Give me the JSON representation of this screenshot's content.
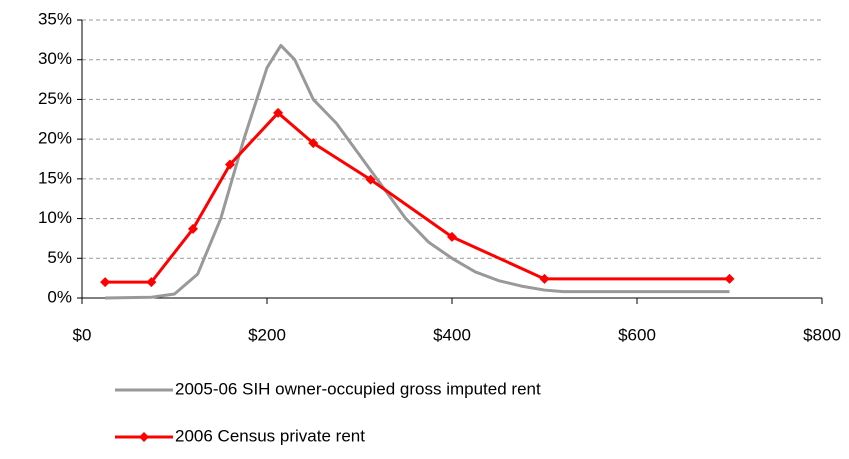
{
  "chart_data": {
    "type": "line",
    "xlim": [
      0,
      800
    ],
    "xticks": [
      {
        "value": 0,
        "label": "$0"
      },
      {
        "value": 200,
        "label": "$200"
      },
      {
        "value": 400,
        "label": "$400"
      },
      {
        "value": 600,
        "label": "$600"
      },
      {
        "value": 800,
        "label": "$800"
      }
    ],
    "ylim": [
      0,
      35
    ],
    "yticks": [
      {
        "value": 0,
        "label": "0%"
      },
      {
        "value": 5,
        "label": "5%"
      },
      {
        "value": 10,
        "label": "10%"
      },
      {
        "value": 15,
        "label": "15%"
      },
      {
        "value": 20,
        "label": "20%"
      },
      {
        "value": 25,
        "label": "25%"
      },
      {
        "value": 30,
        "label": "30%"
      },
      {
        "value": 35,
        "label": "35%"
      }
    ],
    "grid": true,
    "legend": "bottom",
    "series": [
      {
        "name": "2005-06 SIH owner-occupied gross imputed rent",
        "color": "#999999",
        "marker": "none",
        "x": [
          25,
          75,
          100,
          125,
          150,
          175,
          200,
          215,
          230,
          250,
          275,
          300,
          325,
          350,
          375,
          400,
          425,
          450,
          475,
          500,
          520,
          600,
          700
        ],
        "values": [
          0,
          0.1,
          0.5,
          3,
          10,
          20,
          29,
          31.8,
          30,
          25,
          22,
          18,
          14,
          10,
          7,
          5,
          3.3,
          2.2,
          1.5,
          1,
          0.8,
          0.8,
          0.8
        ]
      },
      {
        "name": "2006 Census private rent",
        "color": "#ff0000",
        "marker": "diamond",
        "x": [
          25,
          75,
          120,
          160,
          212,
          250,
          312,
          400,
          500,
          700
        ],
        "values": [
          2,
          2,
          8.7,
          16.8,
          23.3,
          19.5,
          14.9,
          7.7,
          2.4,
          2.4
        ]
      }
    ]
  }
}
